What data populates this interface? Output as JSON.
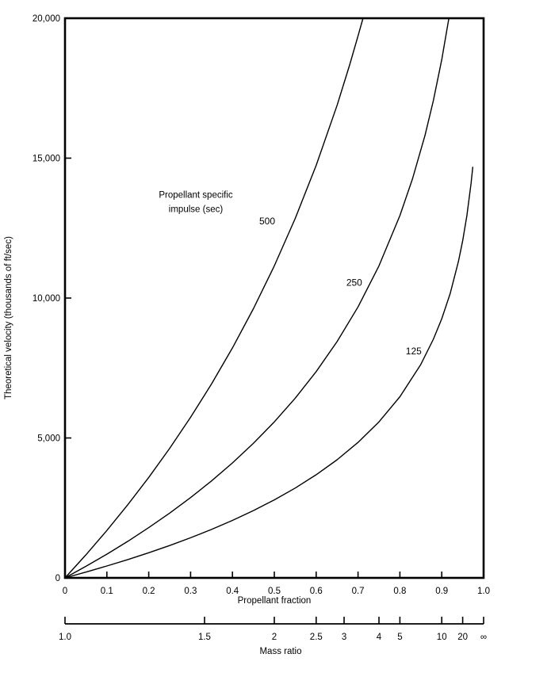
{
  "figure": {
    "background": "#ffffff",
    "ink": "#000000"
  },
  "chart_data": {
    "type": "line",
    "title": "",
    "xlabel": "Propellant fraction",
    "ylabel": "Theoretical velocity (thousands of ft/sec)",
    "xlim": [
      0,
      1.0
    ],
    "ylim": [
      0,
      20000
    ],
    "grid": false,
    "legend_position": "none",
    "x_ticks": [
      {
        "value": 0,
        "label": "0"
      },
      {
        "value": 0.1,
        "label": "0.1"
      },
      {
        "value": 0.2,
        "label": "0.2"
      },
      {
        "value": 0.3,
        "label": "0.3"
      },
      {
        "value": 0.4,
        "label": "0.4"
      },
      {
        "value": 0.5,
        "label": "0.5"
      },
      {
        "value": 0.6,
        "label": "0.6"
      },
      {
        "value": 0.7,
        "label": "0.7"
      },
      {
        "value": 0.8,
        "label": "0.8"
      },
      {
        "value": 0.9,
        "label": "0.9"
      },
      {
        "value": 1.0,
        "label": "1.0"
      }
    ],
    "y_ticks": [
      {
        "value": 0,
        "label": "0"
      },
      {
        "value": 5000,
        "label": "5,000"
      },
      {
        "value": 10000,
        "label": "10,000"
      },
      {
        "value": 15000,
        "label": "15,000"
      },
      {
        "value": 20000,
        "label": "20,000"
      }
    ],
    "annotation": {
      "lines": [
        "Propellant specific",
        "impulse (sec)"
      ],
      "x": 0.3125,
      "y": 13700
    },
    "series": [
      {
        "name": "500",
        "label": "500",
        "label_x": 0.483,
        "label_y": 12750,
        "points": [
          [
            0,
            0
          ],
          [
            0.05,
            825
          ],
          [
            0.1,
            1695
          ],
          [
            0.15,
            2615
          ],
          [
            0.2,
            3590
          ],
          [
            0.25,
            4628
          ],
          [
            0.3,
            5738
          ],
          [
            0.35,
            6930
          ],
          [
            0.4,
            8218
          ],
          [
            0.45,
            9618
          ],
          [
            0.5,
            11151
          ],
          [
            0.55,
            12846
          ],
          [
            0.6,
            14741
          ],
          [
            0.65,
            16889
          ],
          [
            0.68,
            18330
          ],
          [
            0.7,
            19369
          ],
          [
            0.712,
            20000
          ]
        ]
      },
      {
        "name": "250",
        "label": "250",
        "label_x": 0.691,
        "label_y": 10550,
        "points": [
          [
            0,
            0
          ],
          [
            0.05,
            413
          ],
          [
            0.1,
            847
          ],
          [
            0.15,
            1307
          ],
          [
            0.2,
            1795
          ],
          [
            0.25,
            2314
          ],
          [
            0.3,
            2869
          ],
          [
            0.35,
            3465
          ],
          [
            0.4,
            4109
          ],
          [
            0.45,
            4809
          ],
          [
            0.5,
            5575
          ],
          [
            0.55,
            6423
          ],
          [
            0.6,
            7370
          ],
          [
            0.65,
            8444
          ],
          [
            0.7,
            9684
          ],
          [
            0.75,
            11151
          ],
          [
            0.8,
            12946
          ],
          [
            0.83,
            14253
          ],
          [
            0.86,
            15815
          ],
          [
            0.88,
            17055
          ],
          [
            0.9,
            18521
          ],
          [
            0.917,
            20000
          ]
        ]
      },
      {
        "name": "125",
        "label": "125",
        "label_x": 0.833,
        "label_y": 8100,
        "points": [
          [
            0,
            0
          ],
          [
            0.05,
            206
          ],
          [
            0.1,
            424
          ],
          [
            0.15,
            654
          ],
          [
            0.2,
            897
          ],
          [
            0.25,
            1157
          ],
          [
            0.3,
            1434
          ],
          [
            0.35,
            1732
          ],
          [
            0.4,
            2054
          ],
          [
            0.45,
            2404
          ],
          [
            0.5,
            2788
          ],
          [
            0.55,
            3211
          ],
          [
            0.6,
            3685
          ],
          [
            0.65,
            4222
          ],
          [
            0.7,
            4842
          ],
          [
            0.75,
            5576
          ],
          [
            0.8,
            6473
          ],
          [
            0.85,
            7630
          ],
          [
            0.88,
            8528
          ],
          [
            0.9,
            9261
          ],
          [
            0.92,
            10158
          ],
          [
            0.94,
            11315
          ],
          [
            0.95,
            12048
          ],
          [
            0.96,
            12946
          ],
          [
            0.97,
            14103
          ],
          [
            0.974,
            14678
          ]
        ]
      }
    ],
    "secondary_x_axis": {
      "label": "Mass ratio",
      "relation": "mass_ratio = 1 / (1 - propellant_fraction)",
      "ticks": [
        {
          "label": "1.0",
          "x": 0
        },
        {
          "label": "1.5",
          "x": 0.3333
        },
        {
          "label": "2",
          "x": 0.5
        },
        {
          "label": "2.5",
          "x": 0.6
        },
        {
          "label": "3",
          "x": 0.6667
        },
        {
          "label": "4",
          "x": 0.75
        },
        {
          "label": "5",
          "x": 0.8
        },
        {
          "label": "10",
          "x": 0.9
        },
        {
          "label": "20",
          "x": 0.95
        },
        {
          "label": "∞",
          "x": 1.0
        }
      ]
    }
  }
}
